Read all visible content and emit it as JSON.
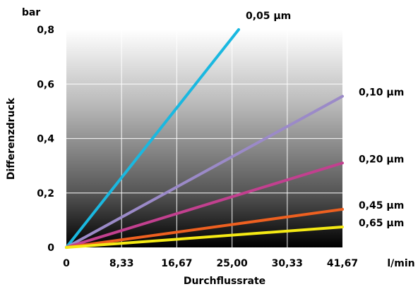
{
  "chart_data": {
    "type": "line",
    "title": "",
    "xlabel": "Durchflussrate",
    "ylabel": "Differenzdruck",
    "x_unit": "l/min",
    "y_unit": "bar",
    "x_ticks": [
      "0",
      "8,33",
      "16,67",
      "25,00",
      "30,33",
      "41,67"
    ],
    "y_ticks": [
      "0",
      "0,2",
      "0,4",
      "0,6",
      "0,8"
    ],
    "xlim": [
      0,
      5
    ],
    "ylim": [
      0,
      0.8
    ],
    "grid": true,
    "series": [
      {
        "name": "0,05 µm",
        "color": "#1ab8e0",
        "points": [
          [
            0,
            0
          ],
          [
            3.12,
            0.8
          ]
        ]
      },
      {
        "name": "0,10 µm",
        "color": "#9b8ac8",
        "points": [
          [
            0,
            0
          ],
          [
            5,
            0.555
          ]
        ]
      },
      {
        "name": "0,20 µm",
        "color": "#c2408f",
        "points": [
          [
            0,
            0
          ],
          [
            5,
            0.31
          ]
        ]
      },
      {
        "name": "0,45 µm",
        "color": "#ee6020",
        "points": [
          [
            0,
            0
          ],
          [
            5,
            0.14
          ]
        ]
      },
      {
        "name": "0,65 µm",
        "color": "#f5ea14",
        "points": [
          [
            0,
            0
          ],
          [
            5,
            0.075
          ]
        ]
      }
    ]
  }
}
